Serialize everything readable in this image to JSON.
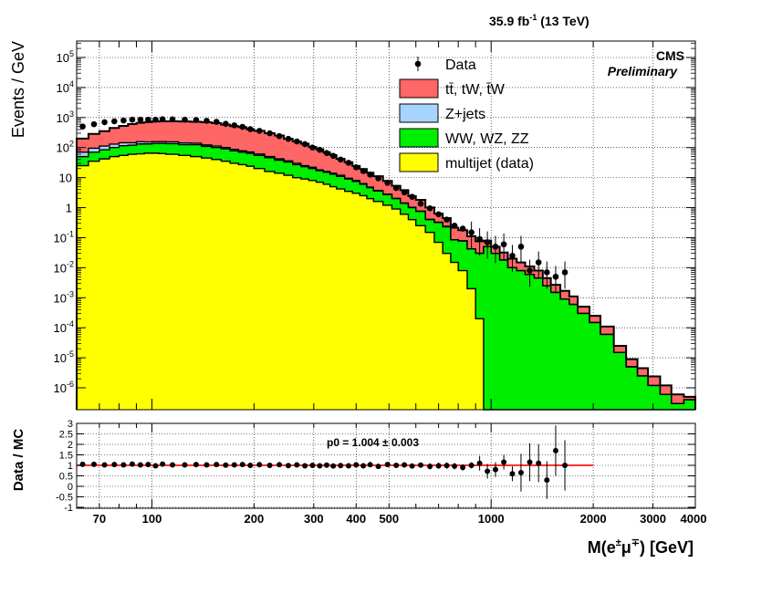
{
  "header": {
    "lumi": "35.9 fb",
    "lumi_exp": "-1",
    "energy": " (13 TeV)",
    "cms": "CMS",
    "preliminary": "Preliminary"
  },
  "chart_data": [
    {
      "type": "area",
      "stacked": true,
      "ylabel": "Events / GeV",
      "yscale": "log",
      "ylim": [
        1.6e-07,
        300000.0
      ],
      "xlim": [
        60,
        4000
      ],
      "xscale": "log",
      "grid": true,
      "legend_position": "top-right",
      "y_tick_labels": [
        "10^-6",
        "10^-5",
        "10^-4",
        "10^-3",
        "10^-2",
        "10^-1",
        "1",
        "10",
        "10^2",
        "10^3",
        "10^4",
        "10^5"
      ],
      "x_edges": [
        60,
        65,
        70,
        75,
        80,
        85,
        90,
        95,
        100,
        105,
        110,
        120,
        130,
        140,
        150,
        160,
        170,
        180,
        190,
        200,
        215,
        230,
        245,
        260,
        275,
        290,
        305,
        320,
        335,
        350,
        370,
        390,
        410,
        430,
        450,
        480,
        510,
        540,
        570,
        600,
        640,
        680,
        720,
        760,
        800,
        850,
        900,
        950,
        1000,
        1060,
        1120,
        1190,
        1260,
        1340,
        1420,
        1500,
        1600,
        1700,
        1800,
        1950,
        2100,
        2300,
        2500,
        2700,
        2900,
        3150,
        3400,
        3700,
        4000
      ],
      "series": [
        {
          "name": "multijet (data)",
          "color": "#ffff00",
          "values": [
            25,
            35,
            42,
            50,
            55,
            60,
            62,
            65,
            65,
            63,
            60,
            55,
            50,
            45,
            40,
            35,
            30,
            27,
            24,
            20,
            16,
            14,
            12,
            10,
            9,
            8,
            7,
            6,
            5,
            4.2,
            3.5,
            3,
            2.5,
            2,
            1.6,
            1.2,
            0.9,
            0.6,
            0.4,
            0.25,
            0.15,
            0.07,
            0.03,
            0.015,
            0.008,
            0.002,
            0.0002,
            0,
            0,
            0,
            0,
            0,
            0,
            0,
            0,
            0,
            0,
            0,
            0,
            0,
            0,
            0,
            0,
            0,
            0,
            0,
            0,
            0
          ]
        },
        {
          "name": "WW, WZ, ZZ",
          "color": "#00ee00",
          "values": [
            25,
            35,
            42,
            50,
            60,
            60,
            70,
            67,
            72,
            75,
            75,
            70,
            75,
            65,
            60,
            55,
            48,
            43,
            40,
            35,
            30,
            24,
            21,
            17,
            14,
            12,
            10,
            9,
            8,
            6.8,
            5.5,
            4.5,
            3.5,
            2.6,
            2,
            1.5,
            1.1,
            0.8,
            0.6,
            0.5,
            0.25,
            0.25,
            0.2,
            0.07,
            0.07,
            0.04,
            0.03,
            0.05,
            0.03,
            0.018,
            0.01,
            0.008,
            0.006,
            0.0045,
            0.0025,
            0.0015,
            0.0009,
            0.0006,
            0.0003,
            0.00015,
            6e-05,
            1.5e-05,
            5e-06,
            2.5e-06,
            1.2e-06,
            6e-07,
            3e-07,
            4e-07
          ]
        },
        {
          "name": "Z+jets",
          "color": "#a6d4ff",
          "values": [
            20,
            25,
            28,
            30,
            30,
            25,
            25,
            22,
            20,
            20,
            20,
            17,
            15,
            13,
            12,
            10,
            9,
            8,
            7,
            6,
            4,
            4,
            3,
            3,
            2,
            2,
            1,
            1,
            1,
            1,
            0.5,
            0.5,
            0.3,
            0.2,
            0.1,
            0.1,
            0.05,
            0.03,
            0.02,
            0.02,
            0.01,
            0.01,
            0.01,
            0,
            0,
            0,
            0,
            0,
            0,
            0,
            0,
            0,
            0,
            0,
            0,
            0,
            0,
            0,
            0,
            0,
            0,
            0,
            0,
            0,
            0,
            0,
            0,
            0
          ]
        },
        {
          "name": "tt̄, tW, t̄W",
          "color": "#ff6666",
          "values": [
            130,
            190,
            240,
            320,
            380,
            460,
            510,
            550,
            580,
            590,
            600,
            600,
            580,
            570,
            540,
            480,
            430,
            400,
            340,
            300,
            250,
            210,
            160,
            130,
            110,
            83,
            70,
            54,
            42,
            30,
            23,
            16.5,
            13,
            9.8,
            7.4,
            5,
            3.3,
            2.4,
            1.4,
            1.05,
            0.6,
            0.3,
            0.21,
            0.13,
            0.1,
            0.07,
            0.045,
            0.03,
            0.02,
            0.014,
            0.01,
            0.007,
            0.005,
            0.0035,
            0.002,
            0.0012,
            0.0008,
            0.0005,
            0.0002,
            0.0001,
            5e-05,
            1e-05,
            4e-06,
            2e-06,
            1.2e-06,
            6e-07,
            3e-07,
            1e-07
          ]
        }
      ],
      "data_points": {
        "name": "Data",
        "x": [
          62.5,
          67.5,
          72.5,
          77.5,
          82.5,
          87.5,
          92.5,
          97.5,
          102.5,
          107.5,
          115,
          125,
          135,
          145,
          155,
          165,
          175,
          185,
          195,
          207.5,
          222.5,
          237.5,
          252.5,
          267.5,
          282.5,
          297.5,
          312.5,
          327.5,
          342.5,
          360,
          380,
          400,
          420,
          440,
          465,
          495,
          525,
          555,
          585,
          620,
          660,
          700,
          740,
          780,
          825,
          875,
          925,
          975,
          1030,
          1090,
          1155,
          1225,
          1300,
          1380,
          1460,
          1550,
          1650
        ],
        "y": [
          500,
          600,
          700,
          750,
          800,
          850,
          850,
          850,
          850,
          880,
          870,
          850,
          830,
          780,
          720,
          620,
          550,
          490,
          410,
          360,
          300,
          240,
          195,
          160,
          130,
          100,
          84,
          66,
          53,
          40,
          31,
          22,
          16.5,
          12.5,
          9.5,
          6.7,
          4.5,
          3.2,
          2.3,
          1.35,
          0.95,
          0.6,
          0.4,
          0.25,
          0.2,
          0.15,
          0.09,
          0.07,
          0.05,
          0.06,
          0.025,
          0.05,
          0.008,
          0.015,
          0.007,
          0.005,
          0.007
        ]
      }
    },
    {
      "type": "scatter",
      "ylabel": "Data / MC",
      "xlabel_main": "M(e",
      "xlabel_sup1": "±",
      "xlabel_mid": "μ",
      "xlabel_sup2": "∓",
      "xlabel_end": ") [GeV]",
      "ylim": [
        -1,
        3
      ],
      "xlim": [
        60,
        4000
      ],
      "xscale": "log",
      "y_tick_labels": [
        "-1",
        "-0.5",
        "0",
        "0.5",
        "1",
        "1.5",
        "2",
        "2.5",
        "3"
      ],
      "x_tick_labels": [
        "70",
        "100",
        "200",
        "300",
        "400",
        "500",
        "1000",
        "2000",
        "3000",
        "4000"
      ],
      "fit_label": "p0 = 1.004  ±  0.003",
      "fit": {
        "p0": 1.004,
        "x_range": [
          60,
          2000
        ],
        "color": "#ff0000"
      },
      "x": [
        62.5,
        67.5,
        72.5,
        77.5,
        82.5,
        87.5,
        92.5,
        97.5,
        102.5,
        107.5,
        115,
        125,
        135,
        145,
        155,
        165,
        175,
        185,
        195,
        207.5,
        222.5,
        237.5,
        252.5,
        267.5,
        282.5,
        297.5,
        312.5,
        327.5,
        342.5,
        360,
        380,
        400,
        420,
        440,
        465,
        495,
        525,
        555,
        585,
        620,
        660,
        700,
        740,
        780,
        825,
        875,
        925,
        975,
        1030,
        1090,
        1155,
        1225,
        1300,
        1380,
        1460,
        1550,
        1650
      ],
      "y": [
        1.05,
        1.05,
        1.02,
        1.04,
        1.02,
        1.06,
        1.02,
        1.04,
        0.98,
        1.06,
        1.02,
        1.02,
        1.04,
        1.02,
        1.04,
        1.01,
        1.02,
        1.04,
        1.0,
        1.03,
        1.0,
        1.03,
        0.99,
        1.02,
        0.98,
        1.0,
        0.98,
        1.01,
        0.97,
        0.99,
        0.98,
        1.02,
        0.98,
        1.03,
        0.95,
        1.04,
        1.0,
        1.02,
        0.97,
        1.01,
        0.95,
        0.98,
        0.99,
        0.96,
        0.9,
        1.0,
        1.1,
        0.72,
        0.8,
        1.15,
        0.6,
        0.65,
        1.15,
        1.1,
        0.3,
        1.7,
        1.0
      ]
    }
  ]
}
